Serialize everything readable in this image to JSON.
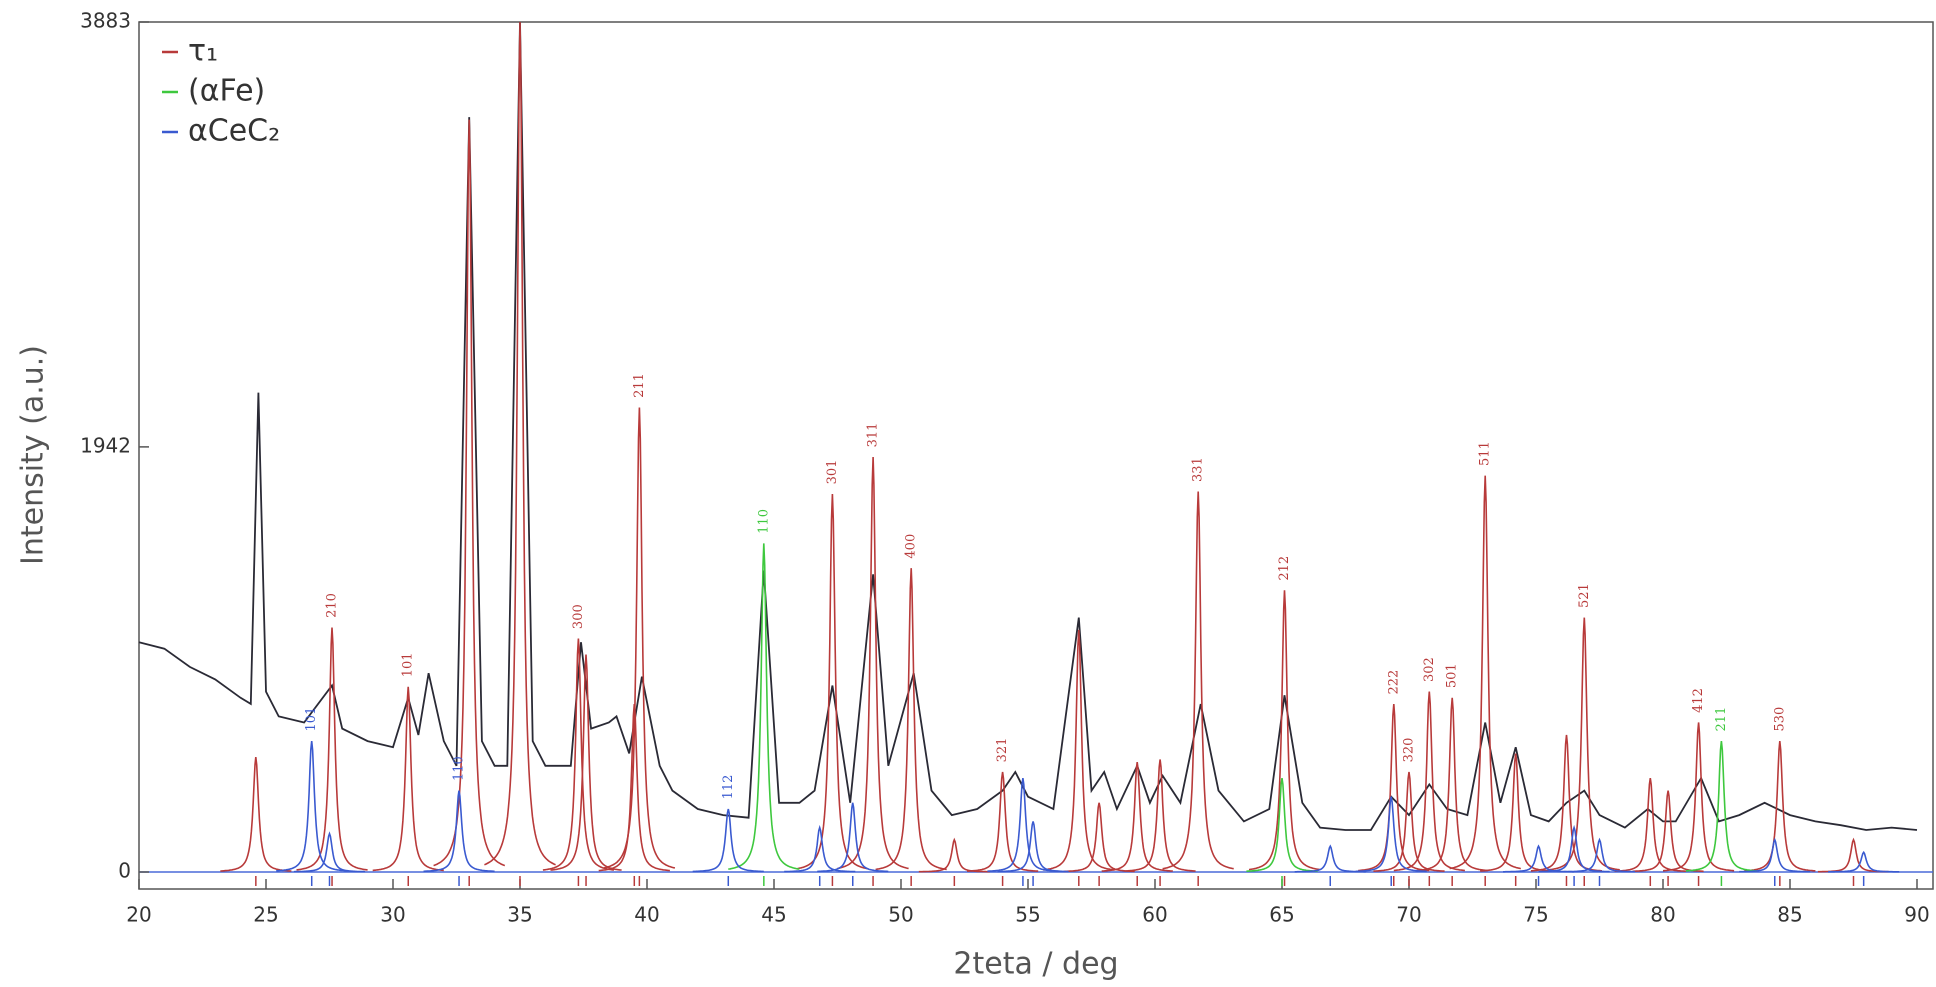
{
  "chart_data": {
    "type": "line",
    "x_label": "2teta / deg",
    "y_label": "Intensity (a.u.)",
    "xlim": [
      20,
      90
    ],
    "xticks": [
      20,
      25,
      30,
      35,
      40,
      45,
      50,
      55,
      60,
      65,
      70,
      75,
      80,
      85,
      90
    ],
    "ylim": [
      0,
      3883
    ],
    "yticks": [
      0,
      1942,
      3883
    ],
    "legend": "upper left",
    "series": [
      {
        "type": "line",
        "color": "#2a2a35",
        "x": [
          20,
          21,
          22,
          23,
          24,
          24.4,
          24.7,
          25,
          25.5,
          26.5,
          27.6,
          28,
          29,
          30,
          30.6,
          31,
          31.4,
          32,
          32.5,
          33,
          33.5,
          34,
          34.5,
          35,
          35.5,
          36,
          37,
          37.4,
          37.8,
          38.5,
          38.8,
          39.3,
          39.8,
          40.5,
          41,
          42,
          43,
          44,
          44.6,
          45.2,
          46,
          46.6,
          47.3,
          48,
          48.9,
          49.5,
          50.5,
          51.2,
          52,
          53,
          54,
          54.5,
          55,
          56,
          57,
          57.5,
          58,
          58.5,
          59.3,
          59.8,
          60.3,
          61,
          61.8,
          62.5,
          63.5,
          64.5,
          65.1,
          65.8,
          66.5,
          67.5,
          68.5,
          69.3,
          70,
          70.8,
          71.5,
          72.3,
          73,
          73.6,
          74.2,
          74.8,
          75.5,
          76.2,
          76.9,
          77.5,
          78.5,
          79.4,
          80,
          80.5,
          81.5,
          82.2,
          83,
          84,
          85,
          86,
          87,
          88,
          89,
          90
        ],
        "values": [
          1050,
          1020,
          937,
          880,
          796,
          768,
          2190,
          824,
          711,
          683,
          852,
          655,
          598,
          570,
          796,
          626,
          908,
          598,
          485,
          3448,
          598,
          485,
          485,
          3883,
          598,
          485,
          485,
          1050,
          655,
          683,
          711,
          542,
          892,
          485,
          372,
          288,
          260,
          248,
          1377,
          316,
          316,
          372,
          852,
          316,
          1360,
          485,
          908,
          372,
          260,
          288,
          372,
          457,
          344,
          288,
          1162,
          372,
          457,
          288,
          485,
          316,
          440,
          316,
          767,
          372,
          231,
          288,
          807,
          316,
          203,
          192,
          192,
          344,
          260,
          400,
          288,
          260,
          683,
          316,
          570,
          260,
          231,
          316,
          372,
          260,
          203,
          288,
          231,
          231,
          429,
          231,
          260,
          316,
          260,
          231,
          214,
          192,
          203,
          192
        ]
      },
      {
        "type": "peaks",
        "name": "τ₁",
        "color": "#b83a3a",
        "x": [
          24.6,
          27.6,
          30.6,
          33.0,
          35.0,
          37.3,
          37.6,
          39.5,
          39.7,
          47.3,
          48.9,
          50.4,
          52.1,
          54.0,
          57.0,
          57.8,
          59.3,
          60.2,
          61.7,
          65.1,
          69.4,
          70.0,
          70.8,
          71.7,
          73.0,
          74.2,
          76.2,
          76.9,
          79.5,
          80.2,
          81.4,
          84.6,
          87.5
        ],
        "values": [
          525,
          1117,
          846,
          3437,
          3883,
          1066,
          993,
          767,
          2122,
          1727,
          1896,
          1388,
          147,
          457,
          1106,
          316,
          502,
          514,
          1738,
          1287,
          767,
          457,
          824,
          796,
          1811,
          541,
          626,
          1162,
          429,
          372,
          683,
          598,
          147
        ],
        "labels": [
          null,
          "210",
          "101",
          null,
          null,
          "300",
          null,
          null,
          "211",
          "301",
          "311",
          "400",
          null,
          "321",
          null,
          null,
          null,
          null,
          "331",
          "212",
          "222",
          "320",
          "302",
          "501",
          "511",
          null,
          null,
          "521",
          null,
          null,
          "412",
          "530",
          null
        ]
      },
      {
        "type": "peaks",
        "name": "(αFe)",
        "color": "#3ec83e",
        "x": [
          44.6,
          65.0,
          82.3
        ],
        "values": [
          1501,
          429,
          598
        ],
        "labels": [
          "110",
          null,
          "211"
        ]
      },
      {
        "type": "peaks",
        "name": "αCeC₂",
        "color": "#3a5ad0",
        "x": [
          26.8,
          27.5,
          32.6,
          43.2,
          46.8,
          48.1,
          54.8,
          55.2,
          66.9,
          69.3,
          75.1,
          76.5,
          77.5,
          84.4,
          87.9
        ],
        "values": [
          598,
          175,
          372,
          288,
          203,
          316,
          429,
          231,
          118,
          344,
          118,
          203,
          147,
          147,
          90
        ],
        "labels": [
          "101",
          null,
          "110",
          "112",
          null,
          null,
          null,
          null,
          null,
          null,
          null,
          null,
          null,
          null,
          null
        ]
      }
    ]
  }
}
